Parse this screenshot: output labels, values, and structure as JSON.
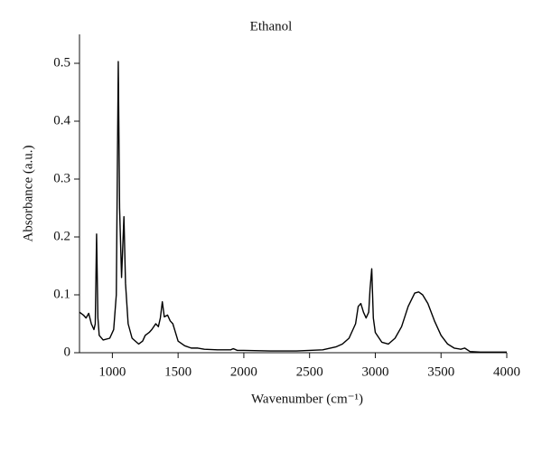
{
  "chart_data": {
    "type": "line",
    "title": "Ethanol",
    "x_label": "Wavenumber (cm⁻¹)",
    "y_label": "Absorbance (a.u.)",
    "xlim": [
      750,
      4000
    ],
    "xticks": [
      1000,
      1500,
      2000,
      2500,
      3000,
      3500,
      4000
    ],
    "ylim": [
      0,
      0.55
    ],
    "yticks": [
      0,
      0.1,
      0.2,
      0.3,
      0.4,
      0.5
    ],
    "series": [
      {
        "color": "#000000",
        "x": [
          750,
          780,
          800,
          820,
          840,
          860,
          870,
          880,
          890,
          900,
          930,
          980,
          1010,
          1030,
          1045,
          1055,
          1070,
          1088,
          1100,
          1120,
          1150,
          1200,
          1230,
          1250,
          1280,
          1300,
          1330,
          1350,
          1365,
          1380,
          1395,
          1420,
          1440,
          1460,
          1480,
          1500,
          1550,
          1600,
          1650,
          1700,
          1800,
          1900,
          1920,
          1950,
          2000,
          2200,
          2400,
          2600,
          2700,
          2750,
          2800,
          2850,
          2870,
          2890,
          2910,
          2930,
          2950,
          2960,
          2973,
          2985,
          3000,
          3050,
          3100,
          3150,
          3200,
          3250,
          3300,
          3330,
          3360,
          3400,
          3450,
          3500,
          3550,
          3600,
          3650,
          3680,
          3720,
          3800,
          4000
        ],
        "values": [
          0.07,
          0.065,
          0.06,
          0.068,
          0.05,
          0.04,
          0.05,
          0.205,
          0.06,
          0.03,
          0.022,
          0.025,
          0.04,
          0.1,
          0.503,
          0.25,
          0.13,
          0.235,
          0.12,
          0.05,
          0.025,
          0.015,
          0.02,
          0.03,
          0.035,
          0.04,
          0.05,
          0.045,
          0.06,
          0.088,
          0.062,
          0.065,
          0.055,
          0.05,
          0.035,
          0.02,
          0.012,
          0.008,
          0.008,
          0.006,
          0.005,
          0.005,
          0.007,
          0.004,
          0.004,
          0.003,
          0.003,
          0.005,
          0.01,
          0.015,
          0.025,
          0.05,
          0.08,
          0.085,
          0.07,
          0.06,
          0.07,
          0.11,
          0.145,
          0.06,
          0.035,
          0.018,
          0.015,
          0.025,
          0.045,
          0.08,
          0.103,
          0.105,
          0.1,
          0.085,
          0.055,
          0.03,
          0.015,
          0.008,
          0.006,
          0.008,
          0.002,
          0.001,
          0.001
        ]
      }
    ]
  }
}
